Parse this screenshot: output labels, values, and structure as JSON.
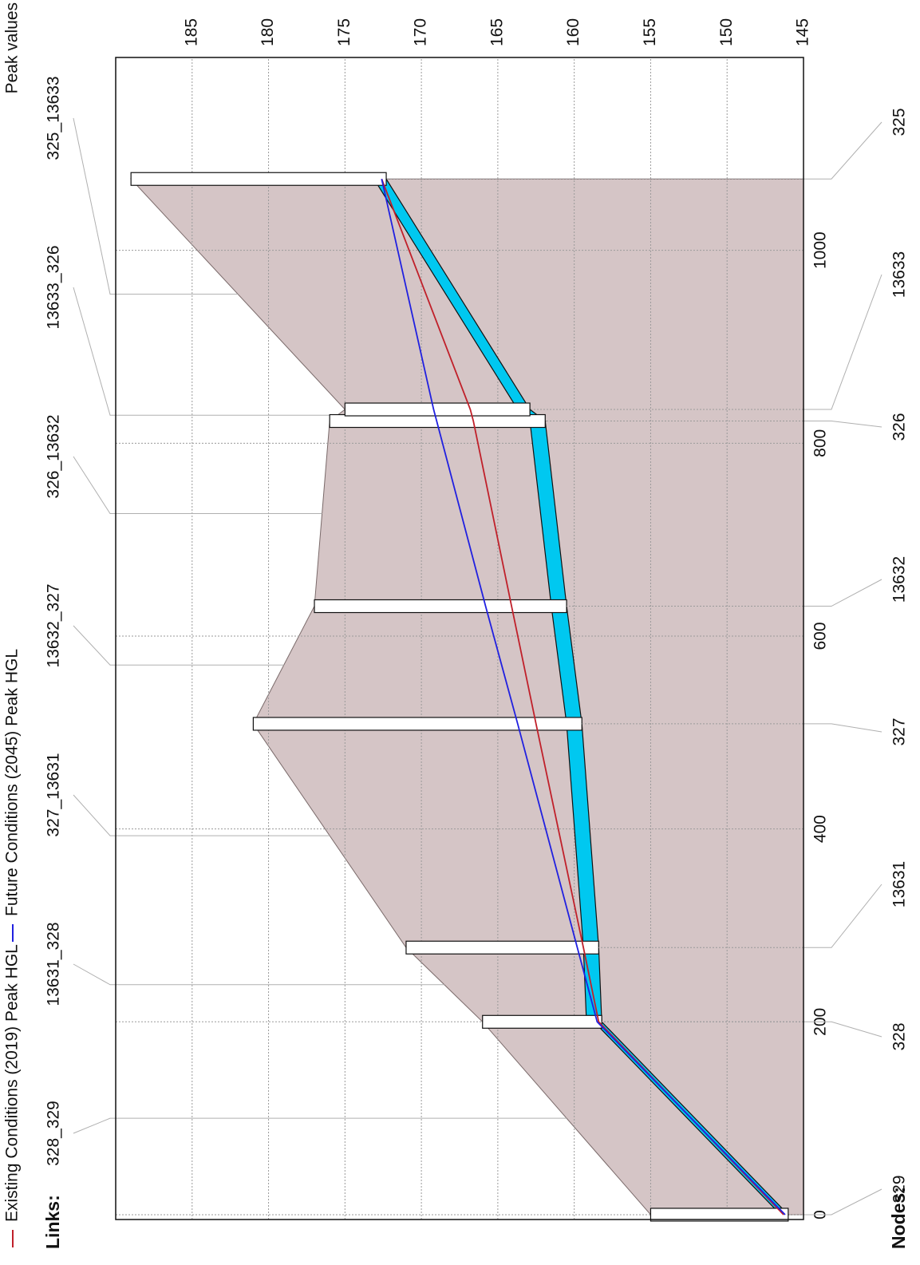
{
  "chart_data": {
    "type": "profile",
    "legend_label": "Peak values",
    "links_label": "Links:",
    "nodes_label": "Nodes:",
    "xlim": [
      -5,
      1200
    ],
    "xticks": [
      0,
      200,
      400,
      600,
      800,
      1000
    ],
    "ylim": [
      145,
      190
    ],
    "yticks": [
      145,
      150,
      155,
      160,
      165,
      170,
      175,
      180,
      185
    ],
    "grid": true,
    "ground_color": "#d5c5c6",
    "pipe_color": "#00c8f0",
    "nodes": [
      {
        "name": "329",
        "distance": 0,
        "invert": 146,
        "rim": 155
      },
      {
        "name": "328",
        "distance": 200,
        "invert": 158.2,
        "rim": 166
      },
      {
        "name": "13631",
        "distance": 277,
        "invert": 158.4,
        "rim": 171
      },
      {
        "name": "327",
        "distance": 509,
        "invert": 159.5,
        "rim": 181
      },
      {
        "name": "13632",
        "distance": 631,
        "invert": 160.5,
        "rim": 177
      },
      {
        "name": "326",
        "distance": 823,
        "invert": 161.9,
        "rim": 176
      },
      {
        "name": "13633",
        "distance": 835,
        "invert": 162.9,
        "rim": 175
      },
      {
        "name": "325",
        "distance": 1074,
        "invert": 172.3,
        "rim": 189
      }
    ],
    "links": [
      {
        "name": "328_329",
        "height": 0.5
      },
      {
        "name": "13631_328",
        "height": 1
      },
      {
        "name": "327_13631",
        "height": 1
      },
      {
        "name": "13632_327",
        "height": 1
      },
      {
        "name": "326_13632",
        "height": 1
      },
      {
        "name": "13633_326",
        "height": 1
      },
      {
        "name": "325_13633",
        "height": 0.8
      }
    ],
    "series": [
      {
        "name": "Existing Conditions (2019) Peak HGL",
        "color": "#c0202a",
        "values": [
          146.3,
          158.4,
          159.4,
          162.5,
          164.1,
          166.6,
          166.8,
          172.6
        ]
      },
      {
        "name": "Future Conditions (2045) Peak HGL",
        "color": "#2020e0",
        "values": [
          146.2,
          158.5,
          159.8,
          163.7,
          165.8,
          169.0,
          169.2,
          172.6
        ]
      }
    ]
  }
}
